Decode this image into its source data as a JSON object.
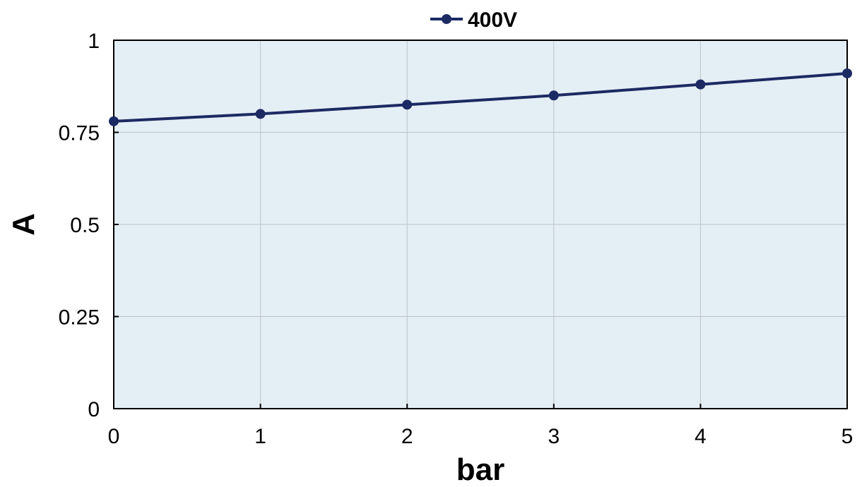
{
  "chart_data": {
    "type": "line",
    "xlabel": "bar",
    "ylabel": "A",
    "xlim": [
      0,
      5
    ],
    "ylim": [
      0,
      1
    ],
    "x_ticks": [
      "0",
      "1",
      "2",
      "3",
      "4",
      "5"
    ],
    "y_ticks": [
      "0",
      "0.25",
      "0.5",
      "0.75",
      "1"
    ],
    "grid": true,
    "legend_position": "top-center",
    "plot_background": "#e4eef5",
    "series": [
      {
        "name": "400V",
        "color": "#1c2a63",
        "marker": "circle",
        "x": [
          0,
          1,
          2,
          3,
          4,
          5
        ],
        "y": [
          0.78,
          0.8,
          0.825,
          0.85,
          0.88,
          0.91
        ]
      }
    ]
  }
}
